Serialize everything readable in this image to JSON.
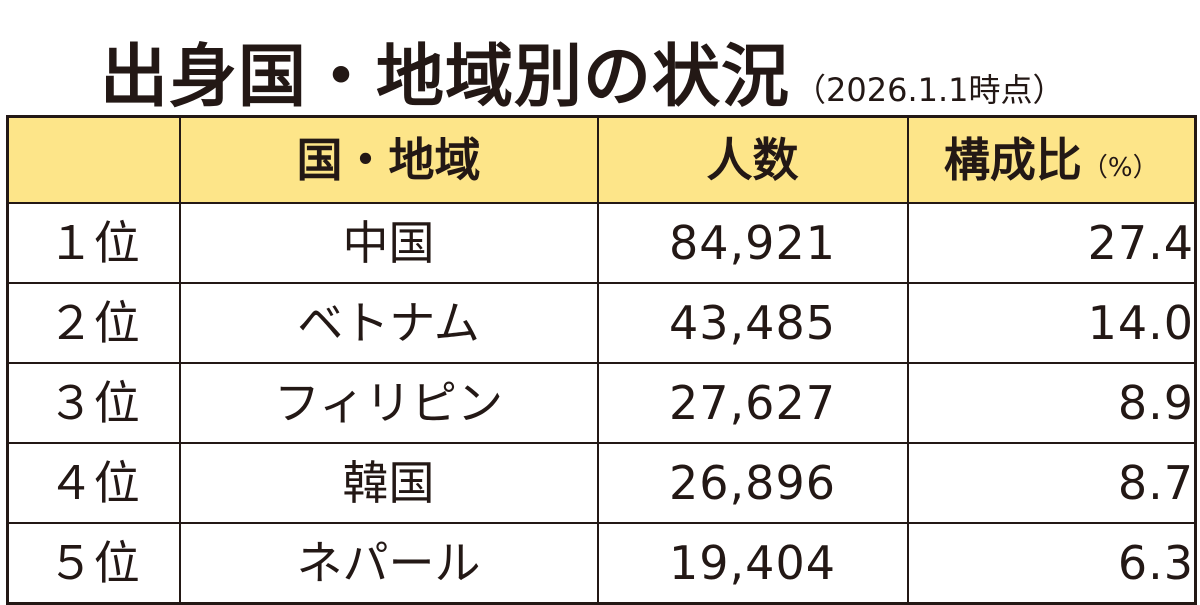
{
  "title": {
    "main": "出身国・地域別の状況",
    "note": "（2026.1.1時点）"
  },
  "chart_data": {
    "type": "table",
    "columns": {
      "rank": "",
      "country": "国・地域",
      "people": "人数",
      "ratio": "構成比",
      "ratio_unit": "（%）"
    },
    "rows": [
      {
        "rank": "１位",
        "country": "中国",
        "people": "84,921",
        "ratio": "27.4"
      },
      {
        "rank": "２位",
        "country": "ベトナム",
        "people": "43,485",
        "ratio": "14.0"
      },
      {
        "rank": "３位",
        "country": "フィリピン",
        "people": "27,627",
        "ratio": "8.9"
      },
      {
        "rank": "４位",
        "country": "韓国",
        "people": "26,896",
        "ratio": "8.7"
      },
      {
        "rank": "５位",
        "country": "ネパール",
        "people": "19,404",
        "ratio": "6.3"
      }
    ]
  },
  "colors": {
    "header_background": "#fde589",
    "text": "#231815",
    "border": "#231815"
  }
}
